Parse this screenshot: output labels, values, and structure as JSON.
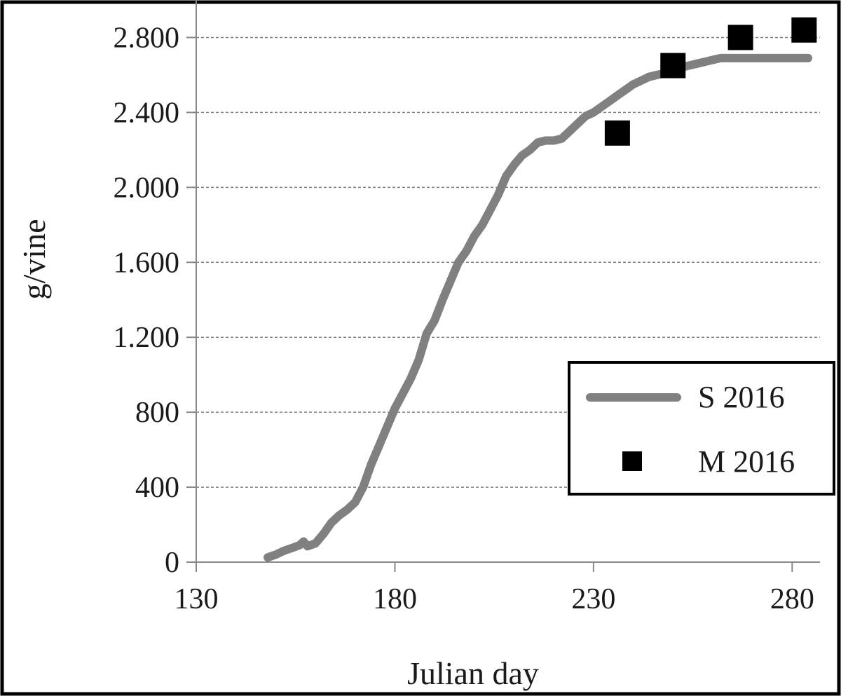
{
  "chart_data": {
    "type": "line",
    "title": "",
    "xlabel": "Julian day",
    "ylabel": "g/vine",
    "xlim": [
      130,
      287
    ],
    "ylim": [
      0,
      3000
    ],
    "x_ticks": [
      130,
      180,
      230,
      280
    ],
    "y_ticks": [
      0,
      400,
      800,
      1200,
      1600,
      2000,
      2400,
      2800
    ],
    "x_tick_labels": [
      "130",
      "180",
      "230",
      "280"
    ],
    "y_tick_labels": [
      "0",
      "400",
      "800",
      "1.200",
      "1.600",
      "2.000",
      "2.400",
      "2.800"
    ],
    "grid": {
      "horizontal": true,
      "vertical": false,
      "style": "dashed"
    },
    "legend_position": "right",
    "series": [
      {
        "name": "S 2016",
        "type": "line",
        "color": "#808080",
        "x": [
          148,
          150,
          152,
          154,
          156,
          157,
          158,
          160,
          162,
          164,
          166,
          168,
          170,
          172,
          174,
          176,
          178,
          180,
          182,
          184,
          186,
          188,
          190,
          192,
          194,
          196,
          198,
          200,
          202,
          204,
          206,
          208,
          210,
          212,
          214,
          216,
          218,
          220,
          222,
          224,
          226,
          228,
          230,
          232,
          234,
          236,
          238,
          240,
          242,
          244,
          246,
          248,
          250,
          252,
          254,
          256,
          258,
          260,
          262,
          264,
          266,
          268,
          270,
          272,
          274,
          276,
          278,
          280,
          282,
          284
        ],
        "y": [
          25,
          40,
          60,
          75,
          90,
          110,
          85,
          100,
          150,
          210,
          250,
          280,
          320,
          400,
          520,
          620,
          720,
          820,
          900,
          980,
          1080,
          1220,
          1290,
          1400,
          1500,
          1600,
          1660,
          1740,
          1800,
          1880,
          1960,
          2060,
          2120,
          2170,
          2200,
          2240,
          2250,
          2250,
          2260,
          2300,
          2340,
          2380,
          2400,
          2430,
          2460,
          2490,
          2520,
          2550,
          2570,
          2590,
          2600,
          2610,
          2620,
          2640,
          2650,
          2660,
          2670,
          2680,
          2690,
          2690,
          2690,
          2690,
          2690,
          2690,
          2690,
          2690,
          2690,
          2690,
          2690,
          2690
        ]
      },
      {
        "name": "M 2016",
        "type": "scatter",
        "marker": "square",
        "color": "#000000",
        "x": [
          236,
          250,
          267,
          283
        ],
        "y": [
          2290,
          2650,
          2800,
          2840
        ]
      }
    ]
  }
}
